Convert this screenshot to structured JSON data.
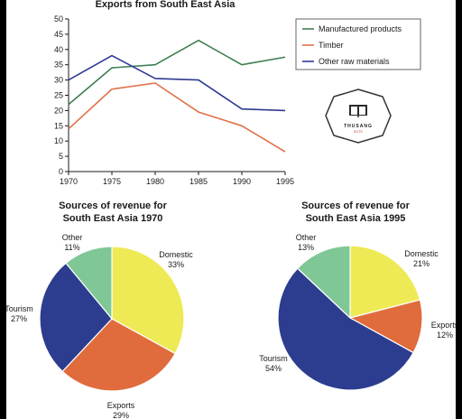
{
  "chart_data": [
    {
      "type": "line",
      "title": "Exports from South East Asia",
      "xlabel": "",
      "ylabel": "",
      "x": [
        1970,
        1975,
        1980,
        1985,
        1990,
        1995
      ],
      "ylim": [
        0,
        50
      ],
      "yticks": [
        0,
        5,
        10,
        15,
        20,
        25,
        30,
        35,
        40,
        45,
        50
      ],
      "grid": false,
      "legend": "top-right",
      "series": [
        {
          "name": "Manufactured products",
          "color": "#3f7f52",
          "values": [
            22,
            34,
            35,
            43,
            35,
            37.5
          ]
        },
        {
          "name": "Timber",
          "color": "#e27048",
          "values": [
            14,
            27,
            29,
            19.5,
            15,
            6.5
          ]
        },
        {
          "name": "Other raw materials",
          "color": "#2e3a91",
          "values": [
            30,
            38,
            30.5,
            30,
            20.5,
            20
          ]
        }
      ]
    },
    {
      "type": "pie",
      "title": "Sources of revenue for South East Asia 1970",
      "title_lines": [
        "Sources of revenue for",
        "South East Asia 1970"
      ],
      "slices": [
        {
          "label": "Domestic",
          "value": 33,
          "display": "33%",
          "color": "#eeea55"
        },
        {
          "label": "Exports",
          "value": 29,
          "display": "29%",
          "color": "#e06b3d"
        },
        {
          "label": "Tourism",
          "value": 27,
          "display": "27%",
          "color": "#2c3d8f"
        },
        {
          "label": "Other",
          "value": 11,
          "display": "11%",
          "color": "#7fc795"
        }
      ]
    },
    {
      "type": "pie",
      "title": "Sources of revenue for South East Asia 1995",
      "title_lines": [
        "Sources of revenue for",
        "South East Asia 1995"
      ],
      "slices": [
        {
          "label": "Domestic",
          "value": 21,
          "display": "21%",
          "color": "#eeea55"
        },
        {
          "label": "Exports",
          "value": 12,
          "display": "12%",
          "color": "#e06b3d"
        },
        {
          "label": "Tourism",
          "value": 54,
          "display": "54%",
          "color": "#2c3d8f"
        },
        {
          "label": "Other",
          "value": 13,
          "display": "13%",
          "color": "#7fc795"
        }
      ]
    }
  ],
  "logo": {
    "text": "THUSANG",
    "subtext": "IELTS",
    "icon": "open-book-icon"
  }
}
